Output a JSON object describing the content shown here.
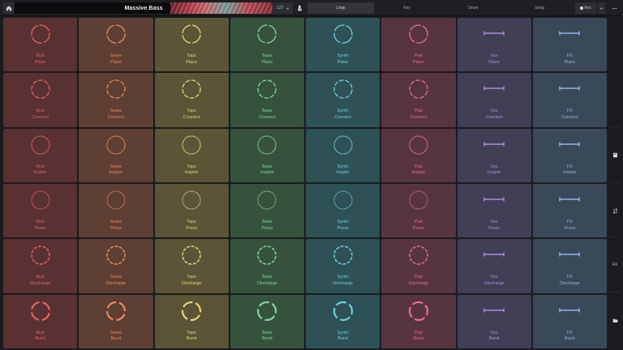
{
  "header": {
    "project_title": "Massive Bass",
    "tempo": "127",
    "tabs": [
      "Loop",
      "Key",
      "Drum",
      "Song"
    ],
    "active_tab": 0,
    "record_label": "Rec",
    "icons": {
      "home": "home-icon",
      "metronome": "metronome-icon",
      "record": "record-dot-icon",
      "menu": "chevron-down-icon",
      "more": "more-dots-icon"
    }
  },
  "grid": {
    "columns": [
      {
        "name": "Kick",
        "color": "#e8625f",
        "bg": "#5a3132",
        "kind": "circle"
      },
      {
        "name": "Snare",
        "color": "#ee8a5d",
        "bg": "#5d3f33",
        "kind": "circle"
      },
      {
        "name": "Tops",
        "color": "#e9d473",
        "bg": "#5b5538",
        "kind": "circle"
      },
      {
        "name": "Bass",
        "color": "#7fd7a0",
        "bg": "#37523c",
        "kind": "circle"
      },
      {
        "name": "Synth",
        "color": "#6fd0e1",
        "bg": "#2d5155",
        "kind": "circle"
      },
      {
        "name": "Pad",
        "color": "#e66f8c",
        "bg": "#573540",
        "kind": "circle"
      },
      {
        "name": "Vox",
        "color": "#b08ae6",
        "bg": "#413f55",
        "kind": "line"
      },
      {
        "name": "FX",
        "color": "#8fb5ea",
        "bg": "#3a4959",
        "kind": "line"
      }
    ],
    "rows": [
      {
        "name": "Place",
        "pattern": "solid-gaps"
      },
      {
        "name": "Connect",
        "pattern": "long-dash"
      },
      {
        "name": "Inspire",
        "pattern": "dots"
      },
      {
        "name": "Press",
        "pattern": "fine-dots"
      },
      {
        "name": "Discharge",
        "pattern": "med-dash"
      },
      {
        "name": "Burst",
        "pattern": "thick-gaps"
      }
    ]
  },
  "sidebar": {
    "items": [
      {
        "icon": "book-icon",
        "text": ""
      },
      {
        "icon": "tune-arrows-icon",
        "text": ""
      },
      {
        "icon": "",
        "text": "FX"
      },
      {
        "icon": "folder-icon",
        "text": ""
      }
    ]
  }
}
